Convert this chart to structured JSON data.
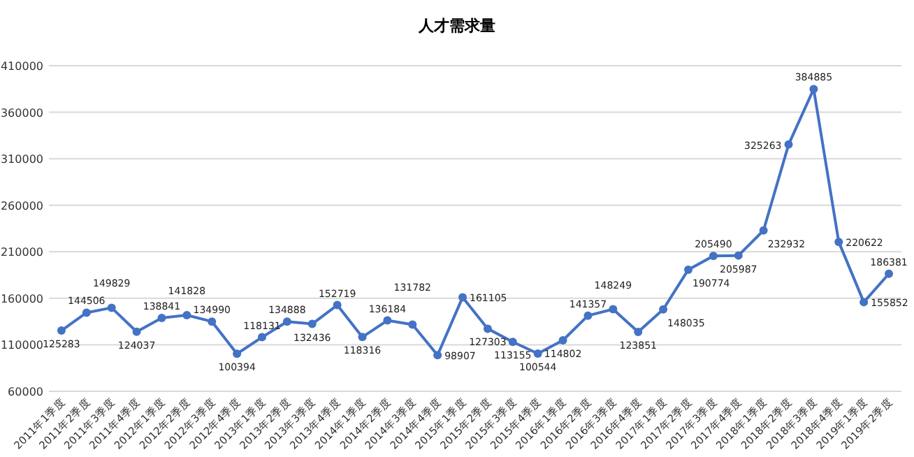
{
  "chart_data": {
    "type": "line",
    "title": "人才需求量",
    "categories": [
      "2011年1季度",
      "2011年2季度",
      "2011年3季度",
      "2011年4季度",
      "2012年1季度",
      "2012年2季度",
      "2012年3季度",
      "2012年4季度",
      "2013年1季度",
      "2013年2季度",
      "2013年3季度",
      "2013年4季度",
      "2014年1季度",
      "2014年2季度",
      "2014年3季度",
      "2014年4季度",
      "2015年1季度",
      "2015年2季度",
      "2015年3季度",
      "2015年4季度",
      "2016年1季度",
      "2016年2季度",
      "2016年3季度",
      "2016年4季度",
      "2017年1季度",
      "2017年2季度",
      "2017年3季度",
      "2017年4季度",
      "2018年1季度",
      "2018年2季度",
      "2018年3季度",
      "2018年4季度",
      "2019年1季度",
      "2019年2季度"
    ],
    "series": [
      {
        "color": "#4472c4",
        "values": [
          125283,
          144506,
          149829,
          124037,
          138841,
          141828,
          134990,
          100394,
          118131,
          134888,
          132436,
          152719,
          118316,
          136184,
          131782,
          98907,
          161105,
          127303,
          113155,
          100544,
          114802,
          141357,
          148249,
          123851,
          148035,
          190774,
          205490,
          205987,
          232932,
          325263,
          384885,
          220622,
          155852,
          186381
        ],
        "value_labels": [
          "125283",
          "144506",
          "149829",
          "124037",
          "138841",
          "141828",
          "134990",
          "100394",
          "118131",
          "134888",
          "132436",
          "152719",
          "118316",
          "136184",
          "131782",
          "98907",
          "161105",
          "127303",
          "113155",
          "100544",
          "114802",
          "141357",
          "148249",
          "123851",
          "148035",
          "190774",
          "205490",
          "205987",
          "232932",
          "325263",
          "384885",
          "220622",
          "155852",
          "186381"
        ]
      }
    ],
    "ylim": [
      60000,
      410000
    ],
    "yticks": [
      60000,
      110000,
      160000,
      210000,
      260000,
      310000,
      360000,
      410000
    ],
    "grid": "y",
    "marker": "circle",
    "line_style": "solid"
  }
}
